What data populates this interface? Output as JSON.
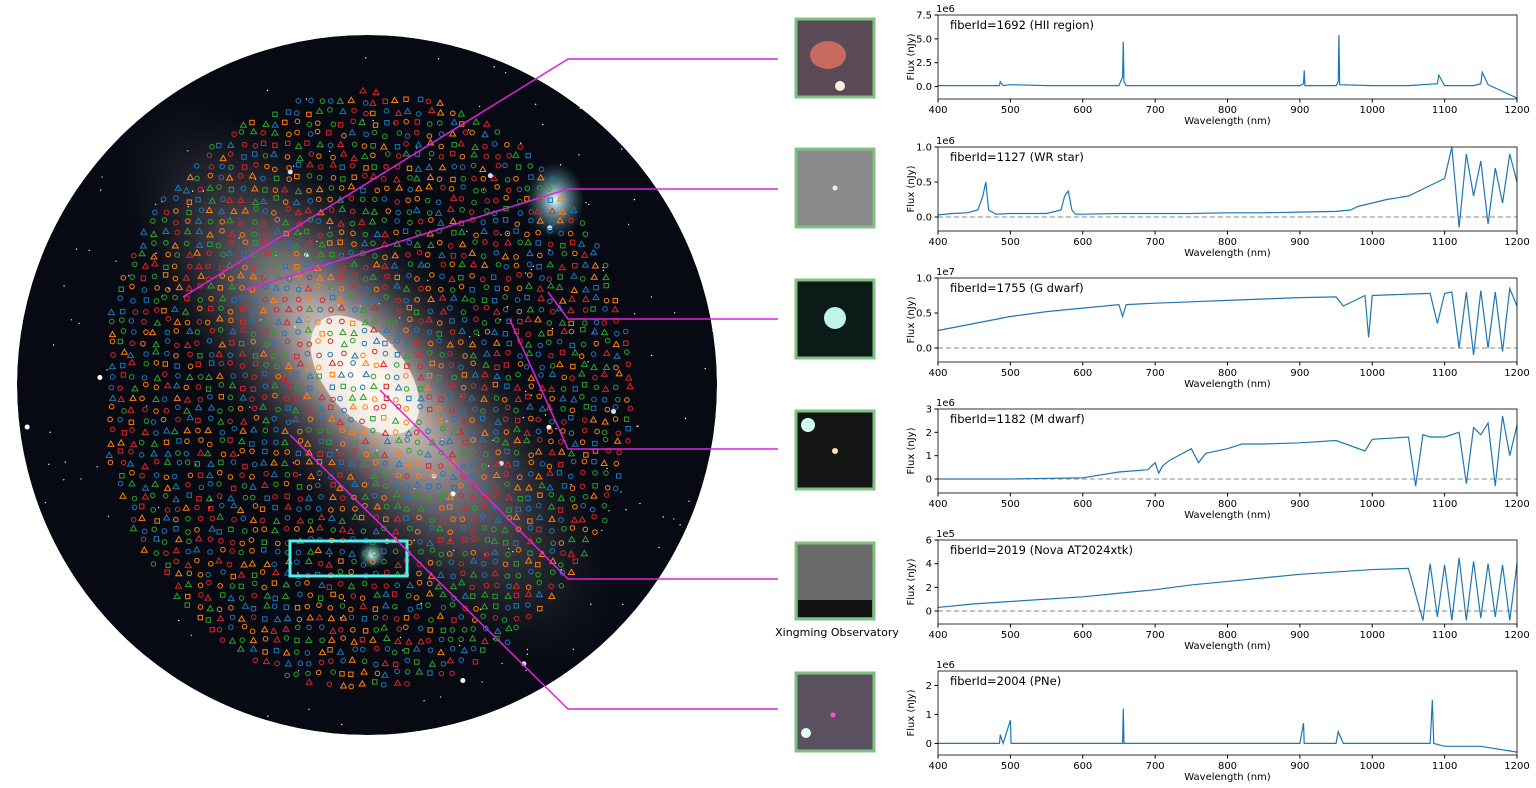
{
  "chart_data": [
    {
      "type": "line",
      "title": "fiberId=1692 (HII region)",
      "xlabel": "Wavelength (nm)",
      "ylabel": "Flux (nJy)",
      "y_offset_label": "1e6",
      "x": [
        400,
        450,
        485,
        486,
        490,
        500,
        550,
        600,
        650,
        655,
        656,
        657,
        660,
        700,
        750,
        800,
        850,
        900,
        905,
        906,
        907,
        950,
        953,
        954,
        955,
        1000,
        1050,
        1090,
        1092,
        1100,
        1140,
        1150,
        1152,
        1160,
        1180,
        1200
      ],
      "values": [
        0.1,
        0.1,
        0.1,
        0.5,
        0.1,
        0.2,
        0.1,
        0.1,
        0.1,
        1.0,
        4.7,
        0.5,
        0.1,
        0.1,
        0.1,
        0.1,
        0.1,
        0.1,
        0.3,
        1.7,
        0.1,
        0.1,
        0.5,
        5.4,
        0.2,
        0.1,
        0.1,
        0.3,
        1.2,
        0.1,
        0.1,
        0.3,
        1.5,
        0.2,
        -0.5,
        -1.2
      ],
      "color": "#1f77b4",
      "xlim": [
        400,
        1200
      ],
      "xticks": [
        400,
        500,
        600,
        700,
        800,
        900,
        1000,
        1100,
        1200
      ],
      "ylim": [
        -1.3,
        7.5
      ],
      "yticks": [
        {
          "value": 0,
          "label": "0.0"
        },
        2.5,
        {
          "value": 5,
          "label": "5.0"
        },
        7.5
      ],
      "zero_line": false
    },
    {
      "type": "line",
      "title": "fiberId=1127 (WR star)",
      "xlabel": "Wavelength (nm)",
      "ylabel": "Flux (nJy)",
      "y_offset_label": "1e6",
      "x": [
        400,
        420,
        440,
        455,
        462,
        466,
        470,
        480,
        500,
        550,
        570,
        575,
        580,
        585,
        590,
        600,
        650,
        700,
        750,
        800,
        850,
        900,
        950,
        970,
        980,
        1000,
        1020,
        1050,
        1080,
        1100,
        1110,
        1120,
        1130,
        1140,
        1150,
        1160,
        1170,
        1180,
        1190,
        1200
      ],
      "values": [
        0.03,
        0.05,
        0.06,
        0.1,
        0.3,
        0.5,
        0.1,
        0.04,
        0.05,
        0.05,
        0.1,
        0.3,
        0.37,
        0.1,
        0.04,
        0.04,
        0.05,
        0.05,
        0.05,
        0.06,
        0.06,
        0.07,
        0.08,
        0.1,
        0.15,
        0.2,
        0.25,
        0.3,
        0.45,
        0.55,
        1.0,
        -0.15,
        0.9,
        0.3,
        0.8,
        -0.1,
        0.7,
        0.2,
        0.9,
        0.5
      ],
      "color": "#1f77b4",
      "xlim": [
        400,
        1200
      ],
      "xticks": [
        400,
        500,
        600,
        700,
        800,
        900,
        1000,
        1100,
        1200
      ],
      "ylim": [
        -0.2,
        1.0
      ],
      "yticks": [
        {
          "value": 0,
          "label": "0.0"
        },
        0.5,
        {
          "value": 1,
          "label": "1.0"
        }
      ],
      "zero_line": true
    },
    {
      "type": "line",
      "title": "fiberId=1755 (G dwarf)",
      "xlabel": "Wavelength (nm)",
      "ylabel": "Flux (nJy)",
      "y_offset_label": "1e7",
      "x": [
        400,
        450,
        500,
        550,
        600,
        650,
        655,
        660,
        700,
        750,
        800,
        850,
        900,
        950,
        960,
        990,
        995,
        1000,
        1050,
        1080,
        1090,
        1100,
        1110,
        1120,
        1130,
        1140,
        1150,
        1160,
        1170,
        1180,
        1190,
        1200
      ],
      "values": [
        0.25,
        0.35,
        0.45,
        0.52,
        0.57,
        0.62,
        0.45,
        0.62,
        0.64,
        0.66,
        0.68,
        0.7,
        0.72,
        0.73,
        0.6,
        0.75,
        0.15,
        0.75,
        0.77,
        0.78,
        0.35,
        0.78,
        0.8,
        0.0,
        0.8,
        -0.1,
        0.82,
        0.0,
        0.8,
        -0.05,
        0.85,
        0.6
      ],
      "color": "#1f77b4",
      "xlim": [
        400,
        1200
      ],
      "xticks": [
        400,
        500,
        600,
        700,
        800,
        900,
        1000,
        1100,
        1200
      ],
      "ylim": [
        -0.2,
        1.0
      ],
      "yticks": [
        {
          "value": 0,
          "label": "0.0"
        },
        0.5,
        {
          "value": 1,
          "label": "1.0"
        }
      ],
      "zero_line": true
    },
    {
      "type": "line",
      "title": "fiberId=1182 (M dwarf)",
      "xlabel": "Wavelength (nm)",
      "ylabel": "Flux (nJy)",
      "y_offset_label": "1e6",
      "x": [
        400,
        500,
        600,
        650,
        690,
        700,
        705,
        710,
        720,
        750,
        760,
        770,
        800,
        820,
        850,
        900,
        950,
        990,
        1000,
        1050,
        1060,
        1070,
        1080,
        1100,
        1120,
        1130,
        1140,
        1150,
        1160,
        1170,
        1180,
        1190,
        1200
      ],
      "values": [
        0,
        0,
        0.05,
        0.3,
        0.4,
        0.7,
        0.25,
        0.55,
        0.8,
        1.3,
        0.7,
        1.1,
        1.3,
        1.5,
        1.5,
        1.55,
        1.65,
        1.2,
        1.7,
        1.8,
        -0.3,
        1.9,
        1.8,
        1.8,
        2.0,
        -0.2,
        2.2,
        1.9,
        2.4,
        -0.3,
        2.7,
        1.0,
        2.3
      ],
      "color": "#1f77b4",
      "xlim": [
        400,
        1200
      ],
      "xticks": [
        400,
        500,
        600,
        700,
        800,
        900,
        1000,
        1100,
        1200
      ],
      "ylim": [
        -0.6,
        3
      ],
      "yticks": [
        0,
        1,
        2,
        3
      ],
      "zero_line": true
    },
    {
      "type": "line",
      "title": "fiberId=2019 (Nova AT2024xtk)",
      "xlabel": "Wavelength (nm)",
      "ylabel": "Flux (nJy)",
      "y_offset_label": "1e5",
      "x": [
        400,
        450,
        500,
        550,
        600,
        650,
        700,
        750,
        800,
        850,
        900,
        950,
        1000,
        1050,
        1070,
        1080,
        1090,
        1100,
        1110,
        1120,
        1130,
        1140,
        1150,
        1160,
        1170,
        1180,
        1190,
        1200
      ],
      "values": [
        0.3,
        0.6,
        0.8,
        1.0,
        1.2,
        1.5,
        1.8,
        2.2,
        2.5,
        2.8,
        3.1,
        3.3,
        3.5,
        3.6,
        -0.8,
        4.0,
        -0.5,
        3.9,
        -0.8,
        4.5,
        -0.8,
        4.2,
        -0.6,
        4.0,
        -0.5,
        3.9,
        -0.8,
        4.0
      ],
      "color": "#1f77b4",
      "xlim": [
        400,
        1200
      ],
      "xticks": [
        400,
        500,
        600,
        700,
        800,
        900,
        1000,
        1100,
        1200
      ],
      "ylim": [
        -1.1,
        6
      ],
      "yticks": [
        0,
        2,
        4,
        6
      ],
      "zero_line": true
    },
    {
      "type": "line",
      "title": "fiberId=2004 (PNe)",
      "xlabel": "Wavelength (nm)",
      "ylabel": "Flux (nJy)",
      "y_offset_label": "1e6",
      "x": [
        400,
        480,
        485,
        486,
        490,
        495,
        500,
        501,
        510,
        600,
        650,
        655,
        656,
        657,
        660,
        700,
        800,
        900,
        905,
        906,
        907,
        950,
        953,
        960,
        1000,
        1080,
        1083,
        1085,
        1100,
        1150,
        1200
      ],
      "values": [
        0,
        0,
        0,
        0.3,
        0,
        0.4,
        0.8,
        0,
        0,
        0,
        0,
        0,
        1.2,
        0,
        0,
        0,
        0,
        0,
        0.7,
        0,
        0,
        0,
        0.4,
        0,
        0,
        0,
        1.5,
        0,
        -0.1,
        -0.1,
        -0.3
      ],
      "color": "#1f77b4",
      "xlim": [
        400,
        1200
      ],
      "xticks": [
        400,
        500,
        600,
        700,
        800,
        900,
        1000,
        1100,
        1200
      ],
      "ylim": [
        -0.4,
        2.5
      ],
      "yticks": [
        0,
        1,
        2
      ],
      "zero_line": false
    }
  ],
  "thumbnail_caption": "Xingming Observatory"
}
